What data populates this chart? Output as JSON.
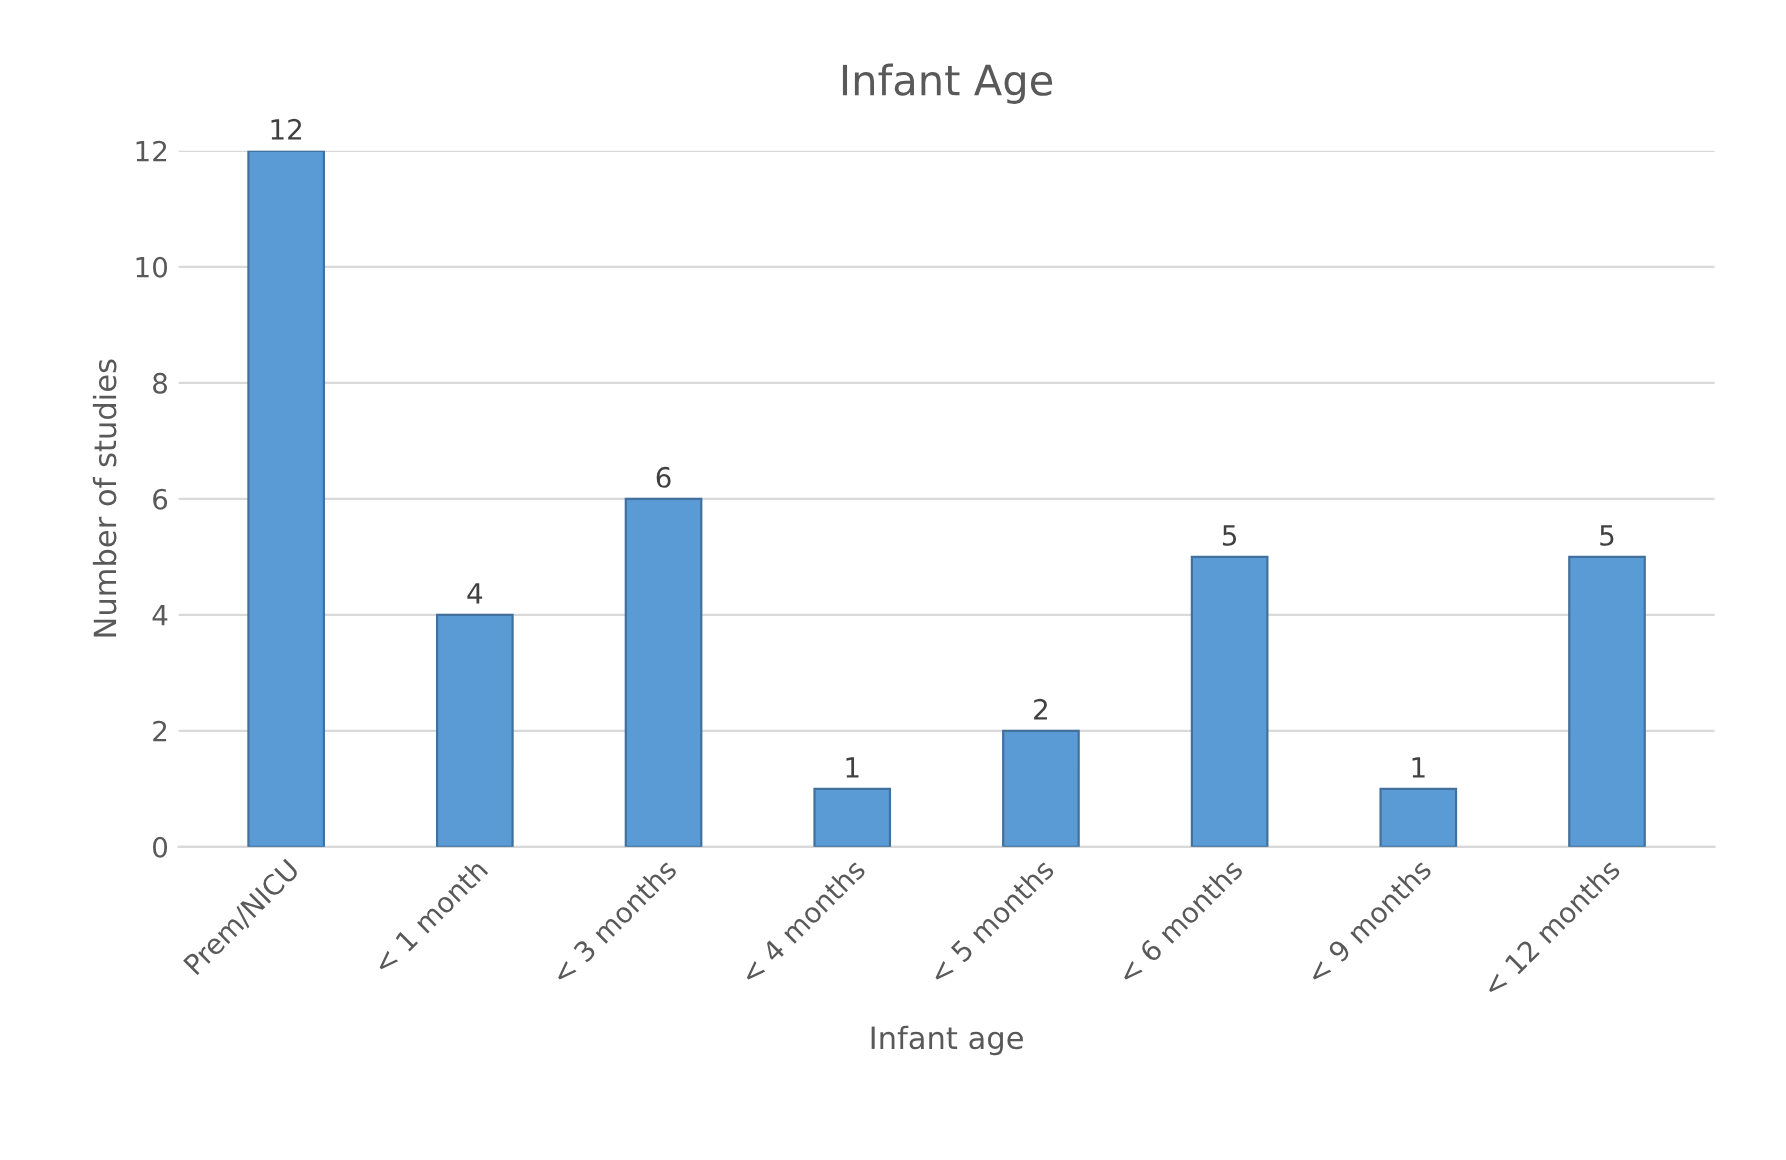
{
  "chart_data": {
    "type": "bar",
    "title": "Infant Age",
    "xlabel": "Infant age",
    "ylabel": "Number of studies",
    "categories": [
      "Prem/NICU",
      "< 1 month",
      "< 3 months",
      "< 4 months",
      "< 5 months",
      "< 6 months",
      "< 9 months",
      "< 12 months"
    ],
    "values": [
      12,
      4,
      6,
      1,
      2,
      5,
      1,
      5
    ],
    "color": "#5b9bd5",
    "ylim": [
      0,
      12
    ],
    "yticks": [
      0,
      2,
      4,
      6,
      8,
      10,
      12
    ],
    "grid": "y",
    "data_labels": true
  }
}
